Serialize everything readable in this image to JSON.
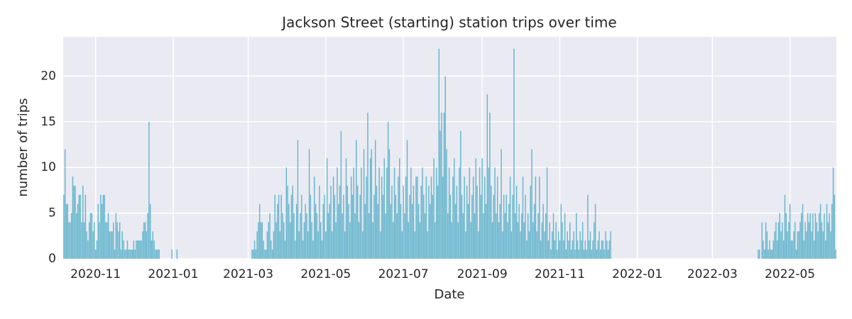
{
  "chart_data": {
    "type": "bar",
    "title": "Jackson Street (starting) station trips over time",
    "xlabel": "Date",
    "ylabel": "number of trips",
    "color": "#64b5cd",
    "grid": true,
    "ylim": [
      0,
      24.3
    ],
    "yticks": [
      0,
      5,
      10,
      15,
      20
    ],
    "categories": [
      null,
      null,
      null,
      null,
      null,
      null,
      null,
      null,
      null,
      null,
      null,
      null,
      null,
      null,
      null,
      null,
      null,
      null,
      null,
      null,
      null,
      null,
      null,
      null,
      null,
      "2020-11",
      null,
      null,
      null,
      null,
      null,
      null,
      null,
      null,
      null,
      null,
      null,
      null,
      null,
      null,
      null,
      null,
      null,
      null,
      null,
      null,
      null,
      null,
      null,
      null,
      null,
      null,
      null,
      null,
      null,
      null,
      null,
      null,
      null,
      null,
      null,
      null,
      null,
      null,
      null,
      null,
      null,
      null,
      null,
      null,
      null,
      null,
      null,
      null,
      null,
      null,
      null,
      null,
      null,
      null,
      null,
      null,
      null,
      null,
      null,
      null,
      "2021-01",
      null,
      null,
      null,
      null,
      null,
      null,
      null,
      null,
      null,
      null,
      null,
      null,
      null,
      null,
      null,
      null,
      null,
      null,
      null,
      null,
      null,
      null,
      null,
      null,
      null,
      null,
      null,
      null,
      null,
      null,
      null,
      null,
      null,
      null,
      null,
      null,
      null,
      null,
      null,
      null,
      null,
      null,
      null,
      null,
      null,
      null,
      null,
      null,
      null,
      null,
      null,
      null,
      null,
      null,
      null,
      null,
      null,
      null,
      "2021-03",
      null,
      null,
      null,
      null,
      null,
      null,
      null,
      null,
      null,
      null,
      null,
      null,
      null,
      null,
      null,
      null,
      null,
      null,
      null,
      null,
      null,
      null,
      null,
      null,
      null,
      null,
      null,
      null,
      null,
      null,
      null,
      null,
      null,
      null,
      null,
      null,
      null,
      null,
      null,
      null,
      null,
      null,
      null,
      null,
      null,
      null,
      null,
      null,
      null,
      null,
      null,
      null,
      null,
      null,
      null,
      null,
      null,
      null,
      null,
      null,
      "2021-05",
      null,
      null,
      null,
      null,
      null,
      null,
      null,
      null,
      null,
      null,
      null,
      null,
      null,
      null,
      null,
      null,
      null,
      null,
      null,
      null,
      null,
      null,
      null,
      null,
      null,
      null,
      null,
      null,
      null,
      null,
      null,
      null,
      null,
      null,
      null,
      null,
      null,
      null,
      null,
      null,
      null,
      null,
      null,
      null,
      null,
      null,
      null,
      null,
      null,
      null,
      null,
      null,
      null,
      null,
      null,
      null,
      null,
      null,
      null,
      null,
      "2021-07",
      null,
      null,
      null,
      null,
      null,
      null,
      null,
      null,
      null,
      null,
      null,
      null,
      null,
      null,
      null,
      null,
      null,
      null,
      null,
      null,
      null,
      null,
      null,
      null,
      null,
      null,
      null,
      null,
      null,
      null,
      null,
      null,
      null,
      null,
      null,
      null,
      null,
      null,
      null,
      null,
      null,
      null,
      null,
      null,
      null,
      null,
      null,
      null,
      null,
      null,
      null,
      null,
      null,
      null,
      null,
      null,
      null,
      null,
      null,
      null,
      null,
      "2021-09",
      null,
      null,
      null,
      null,
      null,
      null,
      null,
      null,
      null,
      null,
      null,
      null,
      null,
      null,
      null,
      null,
      null,
      null,
      null,
      null,
      null,
      null,
      null,
      null,
      null,
      null,
      null,
      null,
      null,
      null,
      null,
      null,
      null,
      null,
      null,
      null,
      null,
      null,
      null,
      null,
      null,
      null,
      null,
      null,
      null,
      null,
      null,
      null,
      null,
      null,
      null,
      null,
      null,
      null,
      null,
      null,
      null,
      null,
      null,
      null,
      "2021-11",
      null,
      null,
      null,
      null,
      null,
      null,
      null,
      null,
      null,
      null,
      null,
      null,
      null,
      null,
      null,
      null,
      null,
      null,
      null,
      null,
      null,
      null,
      null,
      null,
      null,
      null,
      null,
      null,
      null,
      null,
      null,
      null,
      null,
      null,
      null,
      null,
      null,
      null,
      null,
      null,
      null,
      null,
      null,
      null,
      null,
      null,
      null,
      null,
      null,
      null,
      null,
      null,
      null,
      null,
      null,
      null,
      null,
      null,
      null,
      null,
      "2022-01",
      null,
      null,
      null,
      null,
      null,
      null,
      null,
      null,
      null,
      null,
      null,
      null,
      null,
      null,
      null,
      null,
      null,
      null,
      null,
      null,
      null,
      null,
      null,
      null,
      null,
      null,
      null,
      null,
      null,
      null,
      null,
      null,
      null,
      null,
      null,
      null,
      null,
      null,
      null,
      null,
      null,
      null,
      null,
      null,
      null,
      null,
      null,
      null,
      null,
      null,
      null,
      null,
      null,
      null,
      null,
      null,
      null,
      null,
      "2022-03",
      null,
      null,
      null,
      null,
      null,
      null,
      null,
      null,
      null,
      null,
      null,
      null,
      null,
      null,
      null,
      null,
      null,
      null,
      null,
      null,
      null,
      null,
      null,
      null,
      null,
      null,
      null,
      null,
      null,
      null,
      null,
      null,
      null,
      null,
      null,
      null,
      null,
      null,
      null,
      null,
      null,
      null,
      null,
      null,
      null,
      null,
      null,
      null,
      null,
      null,
      null,
      null,
      null,
      null,
      null,
      null,
      null,
      null,
      null,
      null,
      "2022-05",
      null,
      null,
      null,
      null,
      null,
      null,
      null,
      null,
      null,
      null,
      null,
      null,
      null,
      null,
      null,
      null,
      null,
      null,
      null,
      null,
      null,
      null,
      null,
      null,
      null,
      null,
      null,
      null,
      null,
      null,
      null,
      null,
      null,
      null,
      null,
      null
    ],
    "values": [
      7,
      12,
      6,
      6,
      4,
      4,
      5,
      9,
      8,
      8,
      5,
      6,
      7,
      7,
      4,
      8,
      4,
      7,
      3,
      2,
      4,
      5,
      5,
      3,
      4,
      1,
      2,
      6,
      4,
      7,
      6,
      7,
      7,
      4,
      4,
      5,
      3,
      3,
      3,
      4,
      1,
      5,
      4,
      3,
      4,
      1,
      3,
      2,
      1,
      1,
      2,
      1,
      1,
      1,
      1,
      2,
      1,
      2,
      2,
      2,
      2,
      2,
      3,
      4,
      4,
      3,
      5,
      15,
      6,
      2,
      3,
      2,
      1,
      1,
      1,
      1,
      0,
      0,
      0,
      0,
      0,
      0,
      0,
      0,
      0,
      1,
      0,
      0,
      0,
      1,
      0,
      0,
      0,
      0,
      0,
      0,
      0,
      0,
      0,
      0,
      0,
      0,
      0,
      0,
      0,
      0,
      0,
      0,
      0,
      0,
      0,
      0,
      0,
      0,
      0,
      0,
      0,
      0,
      0,
      0,
      0,
      0,
      0,
      0,
      0,
      0,
      0,
      0,
      0,
      0,
      0,
      0,
      0,
      0,
      0,
      0,
      0,
      0,
      0,
      0,
      0,
      0,
      0,
      0,
      0,
      0,
      0,
      0,
      1,
      1,
      2,
      1,
      3,
      4,
      6,
      4,
      4,
      2,
      1,
      1,
      3,
      4,
      5,
      2,
      1,
      3,
      7,
      4,
      6,
      7,
      3,
      7,
      5,
      4,
      2,
      10,
      8,
      6,
      4,
      7,
      8,
      5,
      2,
      6,
      13,
      3,
      5,
      7,
      2,
      4,
      6,
      5,
      3,
      12,
      7,
      4,
      2,
      9,
      6,
      5,
      3,
      8,
      4,
      2,
      6,
      7,
      3,
      11,
      5,
      6,
      8,
      3,
      9,
      7,
      4,
      10,
      6,
      8,
      14,
      5,
      7,
      3,
      11,
      8,
      6,
      4,
      9,
      7,
      10,
      5,
      13,
      8,
      4,
      7,
      10,
      3,
      12,
      6,
      9,
      16,
      5,
      11,
      12,
      4,
      7,
      13,
      8,
      6,
      10,
      3,
      9,
      7,
      11,
      5,
      10,
      15,
      12,
      6,
      8,
      4,
      10,
      7,
      5,
      9,
      11,
      6,
      3,
      8,
      5,
      9,
      13,
      4,
      7,
      10,
      6,
      8,
      3,
      9,
      9,
      6,
      4,
      8,
      10,
      7,
      5,
      9,
      3,
      8,
      6,
      9,
      7,
      11,
      4,
      10,
      8,
      23,
      14,
      16,
      9,
      16,
      20,
      12,
      5,
      10,
      7,
      4,
      9,
      11,
      6,
      8,
      4,
      10,
      14,
      7,
      5,
      9,
      3,
      8,
      6,
      10,
      4,
      7,
      9,
      5,
      11,
      8,
      3,
      10,
      7,
      11,
      5,
      9,
      6,
      18,
      10,
      16,
      8,
      4,
      7,
      10,
      5,
      9,
      4,
      6,
      12,
      3,
      7,
      5,
      7,
      4,
      6,
      9,
      3,
      7,
      23,
      5,
      8,
      4,
      6,
      3,
      5,
      9,
      4,
      7,
      2,
      5,
      3,
      8,
      12,
      4,
      6,
      9,
      3,
      5,
      9,
      2,
      4,
      6,
      3,
      5,
      10,
      2,
      4,
      1,
      3,
      5,
      2,
      4,
      1,
      3,
      2,
      6,
      4,
      2,
      5,
      1,
      3,
      2,
      4,
      1,
      2,
      3,
      1,
      5,
      2,
      1,
      3,
      2,
      4,
      1,
      2,
      1,
      7,
      2,
      3,
      1,
      2,
      4,
      6,
      1,
      2,
      3,
      1,
      2,
      2,
      1,
      3,
      2,
      1,
      2,
      3,
      0,
      0,
      0,
      0,
      0,
      0,
      0,
      0,
      0,
      0,
      0,
      0,
      0,
      0,
      0,
      0,
      0,
      0,
      0,
      0,
      0,
      0,
      0,
      0,
      0,
      0,
      0,
      0,
      0,
      0,
      0,
      0,
      0,
      0,
      0,
      0,
      0,
      0,
      0,
      0,
      0,
      0,
      0,
      0,
      0,
      0,
      0,
      0,
      0,
      0,
      0,
      0,
      0,
      0,
      0,
      0,
      0,
      0,
      0,
      0,
      0,
      0,
      0,
      0,
      0,
      0,
      0,
      0,
      0,
      0,
      0,
      0,
      0,
      0,
      0,
      0,
      0,
      0,
      0,
      0,
      0,
      0,
      0,
      0,
      0,
      0,
      0,
      0,
      0,
      0,
      0,
      0,
      0,
      0,
      0,
      0,
      0,
      0,
      0,
      0,
      0,
      0,
      0,
      0,
      0,
      0,
      0,
      0,
      0,
      0,
      0,
      0,
      0,
      0,
      0,
      1,
      1,
      0,
      4,
      2,
      1,
      4,
      3,
      1,
      2,
      1,
      1,
      2,
      3,
      4,
      2,
      4,
      5,
      3,
      4,
      2,
      7,
      5,
      3,
      4,
      6,
      2,
      2,
      3,
      4,
      1,
      3,
      3,
      4,
      5,
      6,
      2,
      4,
      3,
      5,
      4,
      5,
      3,
      5,
      2,
      5,
      4,
      3,
      5,
      6,
      4,
      3,
      5,
      2,
      6,
      4,
      5,
      3,
      6,
      10,
      7,
      1
    ]
  }
}
